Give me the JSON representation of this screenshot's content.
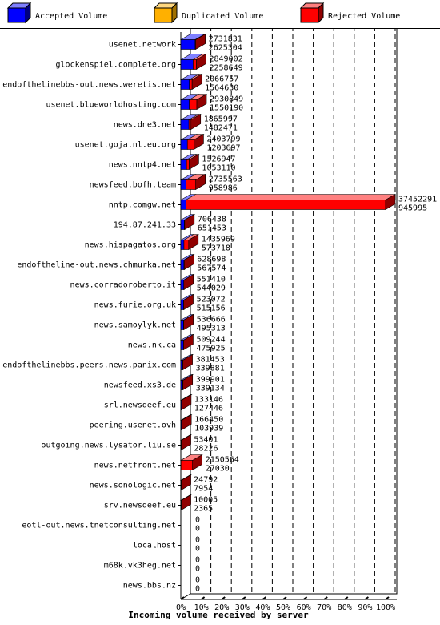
{
  "legend": {
    "items": [
      {
        "label": "Accepted Volume",
        "color": "#0000ff"
      },
      {
        "label": "Duplicated Volume",
        "color": "#ffb000"
      },
      {
        "label": "Rejected Volume",
        "color": "#ff0000"
      }
    ]
  },
  "chart_data": {
    "type": "bar",
    "orientation": "horizontal",
    "stacked": true,
    "xlabel": "Incoming volume received by server",
    "x_ticks": [
      "0%",
      "10%",
      "20%",
      "30%",
      "40%",
      "50%",
      "60%",
      "70%",
      "80%",
      "90%",
      "100%"
    ],
    "xlim": [
      0,
      37452291
    ],
    "grid": true,
    "legend_position": "top",
    "categories": [
      "usenet.network",
      "glockenspiel.complete.org",
      "endofthelinebbs-out.news.weretis.net",
      "usenet.blueworldhosting.com",
      "news.dne3.net",
      "usenet.goja.nl.eu.org",
      "news.nntp4.net",
      "newsfeed.bofh.team",
      "nntp.comgw.net",
      "194.87.241.33",
      "news.hispagatos.org",
      "endoftheline-out.news.chmurka.net",
      "news.corradoroberto.it",
      "news.furie.org.uk",
      "news.samoylyk.net",
      "news.nk.ca",
      "endofthelinebbs.peers.news.panix.com",
      "newsfeed.xs3.de",
      "srl.newsdeef.eu",
      "peering.usenet.ovh",
      "outgoing.news.lysator.liu.se",
      "news.netfront.net",
      "news.sonologic.net",
      "srv.newsdeef.eu",
      "eotl-out.news.tnetconsulting.net",
      "localhost",
      "m68k.vk3heg.net",
      "news.bbs.nz"
    ],
    "total_labels": [
      "2731831",
      "2849002",
      "2066757",
      "2930849",
      "1865997",
      "2403799",
      "1526947",
      "2735563",
      "37452291",
      "706438",
      "1435969",
      "628698",
      "551410",
      "523072",
      "536666",
      "509244",
      "381453",
      "399901",
      "133146",
      "166450",
      "53401",
      "2150564",
      "24792",
      "10005",
      "0",
      "0",
      "0",
      "0"
    ],
    "accepted_labels": [
      "2625304",
      "2258649",
      "1564630",
      "1550190",
      "1482471",
      "1203697",
      "1053110",
      "958986",
      "945995",
      "651453",
      "573718",
      "567574",
      "544029",
      "515156",
      "495313",
      "475925",
      "339881",
      "339134",
      "127446",
      "103939",
      "28226",
      "27030",
      "7954",
      "2365",
      "0",
      "0",
      "0",
      "0"
    ],
    "series": [
      {
        "name": "Accepted Volume",
        "color": "#0000ff",
        "values": [
          2625304,
          2258649,
          1564630,
          1550190,
          1482471,
          1203697,
          1053110,
          958986,
          945995,
          651453,
          573718,
          567574,
          544029,
          515156,
          495313,
          475925,
          339881,
          339134,
          127446,
          103939,
          28226,
          27030,
          7954,
          2365,
          0,
          0,
          0,
          0
        ]
      },
      {
        "name": "Duplicated Volume",
        "color": "#ffb000",
        "values": [
          0,
          0,
          0,
          0,
          0,
          0,
          0,
          0,
          0,
          0,
          0,
          0,
          0,
          0,
          0,
          0,
          0,
          0,
          0,
          0,
          0,
          0,
          0,
          0,
          0,
          0,
          0,
          0
        ]
      },
      {
        "name": "Rejected Volume",
        "color": "#ff0000",
        "values": [
          106527,
          590353,
          502127,
          1380659,
          383526,
          1200102,
          473837,
          1776577,
          36506296,
          54985,
          862251,
          61124,
          7381,
          7916,
          41353,
          33319,
          41572,
          60767,
          5700,
          62511,
          25175,
          2123534,
          16838,
          7640,
          0,
          0,
          0,
          0
        ]
      }
    ]
  }
}
